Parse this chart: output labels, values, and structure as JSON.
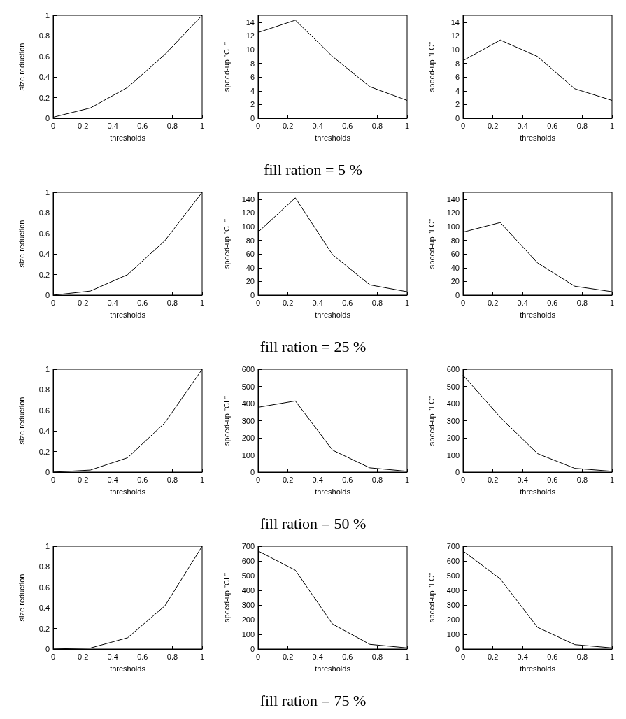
{
  "chart_data": [
    {
      "type": "line",
      "x": [
        0,
        0.25,
        0.5,
        0.75,
        1
      ],
      "values": [
        0.01,
        0.1,
        0.3,
        0.62,
        1
      ],
      "color": "#000000",
      "xlim": [
        0,
        1
      ],
      "ylim": [
        0,
        1
      ],
      "xticks": [
        0,
        0.2,
        0.4,
        0.6,
        0.8,
        1
      ],
      "yticks": [
        0,
        0.2,
        0.4,
        0.6,
        0.8,
        1
      ],
      "xlabel": "thresholds",
      "ylabel": "size reduction",
      "grid": false,
      "marker": "none"
    },
    {
      "type": "line",
      "x": [
        0,
        0.25,
        0.5,
        0.75,
        1
      ],
      "values": [
        12.5,
        14.3,
        9,
        4.6,
        2.6
      ],
      "color": "#000000",
      "xlim": [
        0,
        1
      ],
      "ylim": [
        0,
        15
      ],
      "xticks": [
        0,
        0.2,
        0.4,
        0.6,
        0.8,
        1
      ],
      "yticks": [
        0,
        2,
        4,
        6,
        8,
        10,
        12,
        14
      ],
      "xlabel": "thresholds",
      "ylabel": "speed-up \"CL\"",
      "grid": false,
      "marker": "none",
      "annotations": [
        "fill ration = 5 %"
      ]
    },
    {
      "type": "line",
      "x": [
        0,
        0.25,
        0.5,
        0.75,
        1
      ],
      "values": [
        8.4,
        11.4,
        9,
        4.3,
        2.6
      ],
      "color": "#000000",
      "xlim": [
        0,
        1
      ],
      "ylim": [
        0,
        15
      ],
      "xticks": [
        0,
        0.2,
        0.4,
        0.6,
        0.8,
        1
      ],
      "yticks": [
        0,
        2,
        4,
        6,
        8,
        10,
        12,
        14
      ],
      "xlabel": "thresholds",
      "ylabel": "speed-up \"FC\"",
      "grid": false,
      "marker": "none"
    },
    {
      "type": "line",
      "x": [
        0,
        0.25,
        0.5,
        0.75,
        1
      ],
      "values": [
        0,
        0.04,
        0.2,
        0.53,
        1
      ],
      "color": "#000000",
      "xlim": [
        0,
        1
      ],
      "ylim": [
        0,
        1
      ],
      "xticks": [
        0,
        0.2,
        0.4,
        0.6,
        0.8,
        1
      ],
      "yticks": [
        0,
        0.2,
        0.4,
        0.6,
        0.8,
        1
      ],
      "xlabel": "thresholds",
      "ylabel": "size reduction",
      "grid": false,
      "marker": "none"
    },
    {
      "type": "line",
      "x": [
        0,
        0.25,
        0.5,
        0.75,
        1
      ],
      "values": [
        92,
        142,
        59,
        15,
        5
      ],
      "color": "#000000",
      "xlim": [
        0,
        1
      ],
      "ylim": [
        0,
        150
      ],
      "xticks": [
        0,
        0.2,
        0.4,
        0.6,
        0.8,
        1
      ],
      "yticks": [
        0,
        20,
        40,
        60,
        80,
        100,
        120,
        140
      ],
      "xlabel": "thresholds",
      "ylabel": "speed-up \"CL\"",
      "grid": false,
      "marker": "none",
      "annotations": [
        "fill ration = 25 %"
      ]
    },
    {
      "type": "line",
      "x": [
        0,
        0.25,
        0.5,
        0.75,
        1
      ],
      "values": [
        92,
        106,
        47,
        13,
        5
      ],
      "color": "#000000",
      "xlim": [
        0,
        1
      ],
      "ylim": [
        0,
        150
      ],
      "xticks": [
        0,
        0.2,
        0.4,
        0.6,
        0.8,
        1
      ],
      "yticks": [
        0,
        20,
        40,
        60,
        80,
        100,
        120,
        140
      ],
      "xlabel": "thresholds",
      "ylabel": "speed-up \"FC\"",
      "grid": false,
      "marker": "none"
    },
    {
      "type": "line",
      "x": [
        0,
        0.25,
        0.5,
        0.75,
        1
      ],
      "values": [
        0,
        0.02,
        0.14,
        0.48,
        1
      ],
      "color": "#000000",
      "xlim": [
        0,
        1
      ],
      "ylim": [
        0,
        1
      ],
      "xticks": [
        0,
        0.2,
        0.4,
        0.6,
        0.8,
        1
      ],
      "yticks": [
        0,
        0.2,
        0.4,
        0.6,
        0.8,
        1
      ],
      "xlabel": "thresholds",
      "ylabel": "size reduction",
      "grid": false,
      "marker": "none"
    },
    {
      "type": "line",
      "x": [
        0,
        0.25,
        0.5,
        0.75,
        1
      ],
      "values": [
        378,
        415,
        128,
        25,
        5
      ],
      "color": "#000000",
      "xlim": [
        0,
        1
      ],
      "ylim": [
        0,
        600
      ],
      "xticks": [
        0,
        0.2,
        0.4,
        0.6,
        0.8,
        1
      ],
      "yticks": [
        0,
        100,
        200,
        300,
        400,
        500,
        600
      ],
      "xlabel": "thresholds",
      "ylabel": "speed-up \"CL\"",
      "grid": false,
      "marker": "none",
      "annotations": [
        "fill ration = 50 %"
      ]
    },
    {
      "type": "line",
      "x": [
        0,
        0.25,
        0.5,
        0.75,
        1
      ],
      "values": [
        565,
        320,
        108,
        22,
        5
      ],
      "color": "#000000",
      "xlim": [
        0,
        1
      ],
      "ylim": [
        0,
        600
      ],
      "xticks": [
        0,
        0.2,
        0.4,
        0.6,
        0.8,
        1
      ],
      "yticks": [
        0,
        100,
        200,
        300,
        400,
        500,
        600
      ],
      "xlabel": "thresholds",
      "ylabel": "speed-up \"FC\"",
      "grid": false,
      "marker": "none"
    },
    {
      "type": "line",
      "x": [
        0,
        0.25,
        0.5,
        0.75,
        1
      ],
      "values": [
        0,
        0.01,
        0.11,
        0.42,
        1
      ],
      "color": "#000000",
      "xlim": [
        0,
        1
      ],
      "ylim": [
        0,
        1
      ],
      "xticks": [
        0,
        0.2,
        0.4,
        0.6,
        0.8,
        1
      ],
      "yticks": [
        0,
        0.2,
        0.4,
        0.6,
        0.8,
        1
      ],
      "xlabel": "thresholds",
      "ylabel": "size reduction",
      "grid": false,
      "marker": "none"
    },
    {
      "type": "line",
      "x": [
        0,
        0.25,
        0.5,
        0.75,
        1
      ],
      "values": [
        668,
        537,
        170,
        32,
        8
      ],
      "color": "#000000",
      "xlim": [
        0,
        1
      ],
      "ylim": [
        0,
        700
      ],
      "xticks": [
        0,
        0.2,
        0.4,
        0.6,
        0.8,
        1
      ],
      "yticks": [
        0,
        100,
        200,
        300,
        400,
        500,
        600,
        700
      ],
      "xlabel": "thresholds",
      "ylabel": "speed-up \"CL\"",
      "grid": false,
      "marker": "none",
      "annotations": [
        "fill ration = 75 %"
      ]
    },
    {
      "type": "line",
      "x": [
        0,
        0.25,
        0.5,
        0.75,
        1
      ],
      "values": [
        668,
        478,
        148,
        30,
        8
      ],
      "color": "#000000",
      "xlim": [
        0,
        1
      ],
      "ylim": [
        0,
        700
      ],
      "xticks": [
        0,
        0.2,
        0.4,
        0.6,
        0.8,
        1
      ],
      "yticks": [
        0,
        100,
        200,
        300,
        400,
        500,
        600,
        700
      ],
      "xlabel": "thresholds",
      "ylabel": "speed-up \"FC\"",
      "grid": false,
      "marker": "none"
    }
  ]
}
